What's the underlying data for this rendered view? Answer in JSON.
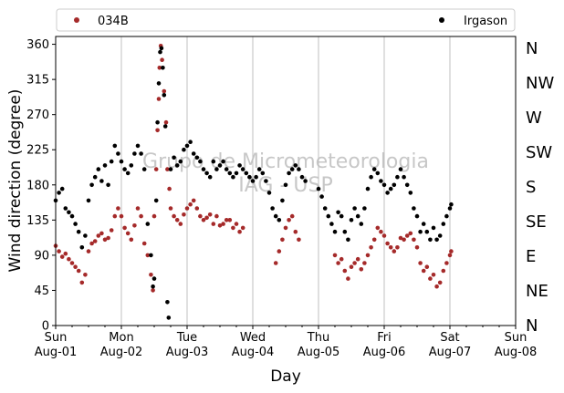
{
  "chart_data": {
    "type": "scatter",
    "title": "",
    "xlabel": "Day",
    "ylabel": "Wind direction (degree)",
    "x_range_days": [
      0,
      7
    ],
    "ylim": [
      0,
      370
    ],
    "yticks": [
      0,
      45,
      90,
      135,
      180,
      225,
      270,
      315,
      360
    ],
    "xtick_labels": [
      {
        "day": 0,
        "line1": "Sun",
        "line2": "Aug-01"
      },
      {
        "day": 1,
        "line1": "Mon",
        "line2": "Aug-02"
      },
      {
        "day": 2,
        "line1": "Tue",
        "line2": "Aug-03"
      },
      {
        "day": 3,
        "line1": "Wed",
        "line2": "Aug-04"
      },
      {
        "day": 4,
        "line1": "Thu",
        "line2": "Aug-05"
      },
      {
        "day": 5,
        "line1": "Fri",
        "line2": "Aug-06"
      },
      {
        "day": 6,
        "line1": "Sat",
        "line2": "Aug-07"
      },
      {
        "day": 7,
        "line1": "Sun",
        "line2": "Aug-08"
      }
    ],
    "compass_labels": [
      {
        "deg": 0,
        "label": "N"
      },
      {
        "deg": 45,
        "label": "NE"
      },
      {
        "deg": 90,
        "label": "E"
      },
      {
        "deg": 135,
        "label": "SE"
      },
      {
        "deg": 180,
        "label": "S"
      },
      {
        "deg": 225,
        "label": "SW"
      },
      {
        "deg": 270,
        "label": "W"
      },
      {
        "deg": 315,
        "label": "NW"
      },
      {
        "deg": 360,
        "label": "N"
      }
    ],
    "grid": "vertical-major",
    "legend_position": "top",
    "watermark": [
      "Grupo de Micrometeorologia",
      "IAG - USP"
    ],
    "series": [
      {
        "name": "034B",
        "color": "#a52a2a",
        "points": [
          [
            0.0,
            102
          ],
          [
            0.05,
            95
          ],
          [
            0.1,
            88
          ],
          [
            0.15,
            92
          ],
          [
            0.2,
            85
          ],
          [
            0.25,
            80
          ],
          [
            0.3,
            75
          ],
          [
            0.35,
            70
          ],
          [
            0.4,
            55
          ],
          [
            0.45,
            65
          ],
          [
            0.5,
            95
          ],
          [
            0.55,
            105
          ],
          [
            0.6,
            108
          ],
          [
            0.65,
            115
          ],
          [
            0.7,
            118
          ],
          [
            0.75,
            110
          ],
          [
            0.8,
            112
          ],
          [
            0.85,
            122
          ],
          [
            0.9,
            140
          ],
          [
            0.95,
            150
          ],
          [
            1.0,
            140
          ],
          [
            1.05,
            125
          ],
          [
            1.1,
            118
          ],
          [
            1.15,
            110
          ],
          [
            1.2,
            128
          ],
          [
            1.25,
            150
          ],
          [
            1.3,
            140
          ],
          [
            1.35,
            105
          ],
          [
            1.4,
            90
          ],
          [
            1.45,
            65
          ],
          [
            1.48,
            45
          ],
          [
            1.5,
            140
          ],
          [
            1.53,
            200
          ],
          [
            1.55,
            250
          ],
          [
            1.57,
            290
          ],
          [
            1.58,
            330
          ],
          [
            1.6,
            358
          ],
          [
            1.62,
            340
          ],
          [
            1.65,
            300
          ],
          [
            1.68,
            260
          ],
          [
            1.7,
            200
          ],
          [
            1.73,
            175
          ],
          [
            1.75,
            150
          ],
          [
            1.8,
            140
          ],
          [
            1.85,
            135
          ],
          [
            1.9,
            130
          ],
          [
            1.95,
            142
          ],
          [
            2.0,
            150
          ],
          [
            2.05,
            155
          ],
          [
            2.1,
            160
          ],
          [
            2.15,
            150
          ],
          [
            2.2,
            140
          ],
          [
            2.25,
            135
          ],
          [
            2.3,
            138
          ],
          [
            2.35,
            142
          ],
          [
            2.4,
            130
          ],
          [
            2.45,
            140
          ],
          [
            2.5,
            128
          ],
          [
            2.55,
            130
          ],
          [
            2.6,
            135
          ],
          [
            2.65,
            135
          ],
          [
            2.7,
            125
          ],
          [
            2.75,
            130
          ],
          [
            2.8,
            120
          ],
          [
            2.85,
            125
          ],
          [
            3.35,
            80
          ],
          [
            3.4,
            95
          ],
          [
            3.45,
            110
          ],
          [
            3.5,
            125
          ],
          [
            3.55,
            135
          ],
          [
            3.6,
            140
          ],
          [
            3.65,
            120
          ],
          [
            3.7,
            110
          ],
          [
            4.25,
            90
          ],
          [
            4.3,
            80
          ],
          [
            4.35,
            85
          ],
          [
            4.4,
            70
          ],
          [
            4.45,
            60
          ],
          [
            4.5,
            75
          ],
          [
            4.55,
            80
          ],
          [
            4.6,
            85
          ],
          [
            4.65,
            72
          ],
          [
            4.7,
            80
          ],
          [
            4.75,
            90
          ],
          [
            4.8,
            100
          ],
          [
            4.85,
            110
          ],
          [
            4.9,
            125
          ],
          [
            4.95,
            120
          ],
          [
            5.0,
            115
          ],
          [
            5.05,
            105
          ],
          [
            5.1,
            100
          ],
          [
            5.15,
            95
          ],
          [
            5.2,
            100
          ],
          [
            5.25,
            112
          ],
          [
            5.3,
            110
          ],
          [
            5.35,
            115
          ],
          [
            5.4,
            118
          ],
          [
            5.45,
            110
          ],
          [
            5.5,
            100
          ],
          [
            5.55,
            80
          ],
          [
            5.6,
            70
          ],
          [
            5.65,
            75
          ],
          [
            5.7,
            60
          ],
          [
            5.75,
            65
          ],
          [
            5.8,
            50
          ],
          [
            5.85,
            55
          ],
          [
            5.9,
            70
          ],
          [
            5.95,
            80
          ],
          [
            6.0,
            90
          ],
          [
            6.02,
            95
          ]
        ]
      },
      {
        "name": "Irgason",
        "color": "#000000",
        "points": [
          [
            0.0,
            160
          ],
          [
            0.05,
            170
          ],
          [
            0.1,
            175
          ],
          [
            0.15,
            150
          ],
          [
            0.2,
            145
          ],
          [
            0.25,
            140
          ],
          [
            0.3,
            130
          ],
          [
            0.35,
            120
          ],
          [
            0.4,
            100
          ],
          [
            0.45,
            115
          ],
          [
            0.5,
            160
          ],
          [
            0.55,
            180
          ],
          [
            0.6,
            190
          ],
          [
            0.65,
            200
          ],
          [
            0.7,
            185
          ],
          [
            0.75,
            205
          ],
          [
            0.8,
            180
          ],
          [
            0.85,
            210
          ],
          [
            0.9,
            230
          ],
          [
            0.95,
            220
          ],
          [
            1.0,
            210
          ],
          [
            1.05,
            200
          ],
          [
            1.1,
            195
          ],
          [
            1.15,
            205
          ],
          [
            1.2,
            220
          ],
          [
            1.25,
            230
          ],
          [
            1.3,
            220
          ],
          [
            1.35,
            200
          ],
          [
            1.4,
            130
          ],
          [
            1.45,
            90
          ],
          [
            1.48,
            50
          ],
          [
            1.5,
            60
          ],
          [
            1.53,
            160
          ],
          [
            1.55,
            260
          ],
          [
            1.57,
            310
          ],
          [
            1.59,
            350
          ],
          [
            1.61,
            355
          ],
          [
            1.63,
            330
          ],
          [
            1.65,
            295
          ],
          [
            1.67,
            255
          ],
          [
            1.7,
            30
          ],
          [
            1.72,
            10
          ],
          [
            1.75,
            200
          ],
          [
            1.8,
            215
          ],
          [
            1.85,
            205
          ],
          [
            1.9,
            210
          ],
          [
            1.95,
            225
          ],
          [
            2.0,
            230
          ],
          [
            2.05,
            235
          ],
          [
            2.1,
            220
          ],
          [
            2.15,
            215
          ],
          [
            2.2,
            210
          ],
          [
            2.25,
            200
          ],
          [
            2.3,
            195
          ],
          [
            2.35,
            190
          ],
          [
            2.4,
            210
          ],
          [
            2.45,
            200
          ],
          [
            2.5,
            205
          ],
          [
            2.55,
            210
          ],
          [
            2.6,
            200
          ],
          [
            2.65,
            195
          ],
          [
            2.7,
            190
          ],
          [
            2.75,
            195
          ],
          [
            2.8,
            205
          ],
          [
            2.85,
            200
          ],
          [
            2.9,
            195
          ],
          [
            2.95,
            190
          ],
          [
            3.0,
            185
          ],
          [
            3.05,
            190
          ],
          [
            3.1,
            200
          ],
          [
            3.15,
            195
          ],
          [
            3.2,
            185
          ],
          [
            3.25,
            170
          ],
          [
            3.3,
            150
          ],
          [
            3.35,
            140
          ],
          [
            3.4,
            135
          ],
          [
            3.45,
            160
          ],
          [
            3.5,
            180
          ],
          [
            3.55,
            195
          ],
          [
            3.6,
            200
          ],
          [
            3.65,
            205
          ],
          [
            3.7,
            200
          ],
          [
            3.75,
            190
          ],
          [
            3.8,
            185
          ],
          [
            4.0,
            175
          ],
          [
            4.05,
            165
          ],
          [
            4.1,
            150
          ],
          [
            4.15,
            140
          ],
          [
            4.2,
            130
          ],
          [
            4.25,
            120
          ],
          [
            4.3,
            145
          ],
          [
            4.35,
            140
          ],
          [
            4.4,
            120
          ],
          [
            4.45,
            110
          ],
          [
            4.5,
            135
          ],
          [
            4.55,
            150
          ],
          [
            4.6,
            140
          ],
          [
            4.65,
            130
          ],
          [
            4.7,
            150
          ],
          [
            4.75,
            175
          ],
          [
            4.8,
            190
          ],
          [
            4.85,
            200
          ],
          [
            4.9,
            195
          ],
          [
            4.95,
            185
          ],
          [
            5.0,
            180
          ],
          [
            5.05,
            170
          ],
          [
            5.1,
            175
          ],
          [
            5.15,
            180
          ],
          [
            5.2,
            190
          ],
          [
            5.25,
            200
          ],
          [
            5.3,
            190
          ],
          [
            5.35,
            180
          ],
          [
            5.4,
            170
          ],
          [
            5.45,
            150
          ],
          [
            5.5,
            140
          ],
          [
            5.55,
            120
          ],
          [
            5.6,
            130
          ],
          [
            5.65,
            120
          ],
          [
            5.7,
            110
          ],
          [
            5.75,
            125
          ],
          [
            5.8,
            110
          ],
          [
            5.85,
            115
          ],
          [
            5.9,
            130
          ],
          [
            5.95,
            140
          ],
          [
            6.0,
            150
          ],
          [
            6.02,
            155
          ]
        ]
      }
    ]
  }
}
